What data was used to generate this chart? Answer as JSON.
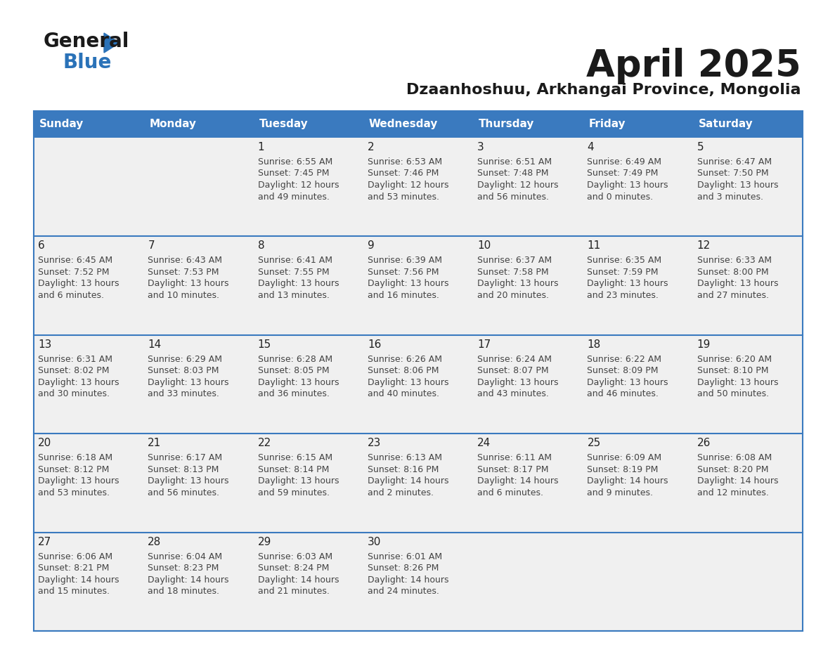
{
  "title": "April 2025",
  "subtitle": "Dzaanhoshuu, Arkhangai Province, Mongolia",
  "days_of_week": [
    "Sunday",
    "Monday",
    "Tuesday",
    "Wednesday",
    "Thursday",
    "Friday",
    "Saturday"
  ],
  "header_bg": "#3a7abf",
  "header_text": "#ffffff",
  "cell_bg": "#f0f0f0",
  "cell_border_color": "#3a7abf",
  "cell_border_thin": "#cccccc",
  "text_color": "#444444",
  "day_num_color": "#222222",
  "title_color": "#1a1a1a",
  "logo_general_color": "#1a1a1a",
  "logo_blue_color": "#2a72b8",
  "logo_triangle_color": "#2a72b8",
  "calendar_data": [
    [
      null,
      null,
      {
        "day": "1",
        "sunrise": "6:55 AM",
        "sunset": "7:45 PM",
        "daylight": "12 hours",
        "daylight2": "and 49 minutes."
      },
      {
        "day": "2",
        "sunrise": "6:53 AM",
        "sunset": "7:46 PM",
        "daylight": "12 hours",
        "daylight2": "and 53 minutes."
      },
      {
        "day": "3",
        "sunrise": "6:51 AM",
        "sunset": "7:48 PM",
        "daylight": "12 hours",
        "daylight2": "and 56 minutes."
      },
      {
        "day": "4",
        "sunrise": "6:49 AM",
        "sunset": "7:49 PM",
        "daylight": "13 hours",
        "daylight2": "and 0 minutes."
      },
      {
        "day": "5",
        "sunrise": "6:47 AM",
        "sunset": "7:50 PM",
        "daylight": "13 hours",
        "daylight2": "and 3 minutes."
      }
    ],
    [
      {
        "day": "6",
        "sunrise": "6:45 AM",
        "sunset": "7:52 PM",
        "daylight": "13 hours",
        "daylight2": "and 6 minutes."
      },
      {
        "day": "7",
        "sunrise": "6:43 AM",
        "sunset": "7:53 PM",
        "daylight": "13 hours",
        "daylight2": "and 10 minutes."
      },
      {
        "day": "8",
        "sunrise": "6:41 AM",
        "sunset": "7:55 PM",
        "daylight": "13 hours",
        "daylight2": "and 13 minutes."
      },
      {
        "day": "9",
        "sunrise": "6:39 AM",
        "sunset": "7:56 PM",
        "daylight": "13 hours",
        "daylight2": "and 16 minutes."
      },
      {
        "day": "10",
        "sunrise": "6:37 AM",
        "sunset": "7:58 PM",
        "daylight": "13 hours",
        "daylight2": "and 20 minutes."
      },
      {
        "day": "11",
        "sunrise": "6:35 AM",
        "sunset": "7:59 PM",
        "daylight": "13 hours",
        "daylight2": "and 23 minutes."
      },
      {
        "day": "12",
        "sunrise": "6:33 AM",
        "sunset": "8:00 PM",
        "daylight": "13 hours",
        "daylight2": "and 27 minutes."
      }
    ],
    [
      {
        "day": "13",
        "sunrise": "6:31 AM",
        "sunset": "8:02 PM",
        "daylight": "13 hours",
        "daylight2": "and 30 minutes."
      },
      {
        "day": "14",
        "sunrise": "6:29 AM",
        "sunset": "8:03 PM",
        "daylight": "13 hours",
        "daylight2": "and 33 minutes."
      },
      {
        "day": "15",
        "sunrise": "6:28 AM",
        "sunset": "8:05 PM",
        "daylight": "13 hours",
        "daylight2": "and 36 minutes."
      },
      {
        "day": "16",
        "sunrise": "6:26 AM",
        "sunset": "8:06 PM",
        "daylight": "13 hours",
        "daylight2": "and 40 minutes."
      },
      {
        "day": "17",
        "sunrise": "6:24 AM",
        "sunset": "8:07 PM",
        "daylight": "13 hours",
        "daylight2": "and 43 minutes."
      },
      {
        "day": "18",
        "sunrise": "6:22 AM",
        "sunset": "8:09 PM",
        "daylight": "13 hours",
        "daylight2": "and 46 minutes."
      },
      {
        "day": "19",
        "sunrise": "6:20 AM",
        "sunset": "8:10 PM",
        "daylight": "13 hours",
        "daylight2": "and 50 minutes."
      }
    ],
    [
      {
        "day": "20",
        "sunrise": "6:18 AM",
        "sunset": "8:12 PM",
        "daylight": "13 hours",
        "daylight2": "and 53 minutes."
      },
      {
        "day": "21",
        "sunrise": "6:17 AM",
        "sunset": "8:13 PM",
        "daylight": "13 hours",
        "daylight2": "and 56 minutes."
      },
      {
        "day": "22",
        "sunrise": "6:15 AM",
        "sunset": "8:14 PM",
        "daylight": "13 hours",
        "daylight2": "and 59 minutes."
      },
      {
        "day": "23",
        "sunrise": "6:13 AM",
        "sunset": "8:16 PM",
        "daylight": "14 hours",
        "daylight2": "and 2 minutes."
      },
      {
        "day": "24",
        "sunrise": "6:11 AM",
        "sunset": "8:17 PM",
        "daylight": "14 hours",
        "daylight2": "and 6 minutes."
      },
      {
        "day": "25",
        "sunrise": "6:09 AM",
        "sunset": "8:19 PM",
        "daylight": "14 hours",
        "daylight2": "and 9 minutes."
      },
      {
        "day": "26",
        "sunrise": "6:08 AM",
        "sunset": "8:20 PM",
        "daylight": "14 hours",
        "daylight2": "and 12 minutes."
      }
    ],
    [
      {
        "day": "27",
        "sunrise": "6:06 AM",
        "sunset": "8:21 PM",
        "daylight": "14 hours",
        "daylight2": "and 15 minutes."
      },
      {
        "day": "28",
        "sunrise": "6:04 AM",
        "sunset": "8:23 PM",
        "daylight": "14 hours",
        "daylight2": "and 18 minutes."
      },
      {
        "day": "29",
        "sunrise": "6:03 AM",
        "sunset": "8:24 PM",
        "daylight": "14 hours",
        "daylight2": "and 21 minutes."
      },
      {
        "day": "30",
        "sunrise": "6:01 AM",
        "sunset": "8:26 PM",
        "daylight": "14 hours",
        "daylight2": "and 24 minutes."
      },
      null,
      null,
      null
    ]
  ]
}
